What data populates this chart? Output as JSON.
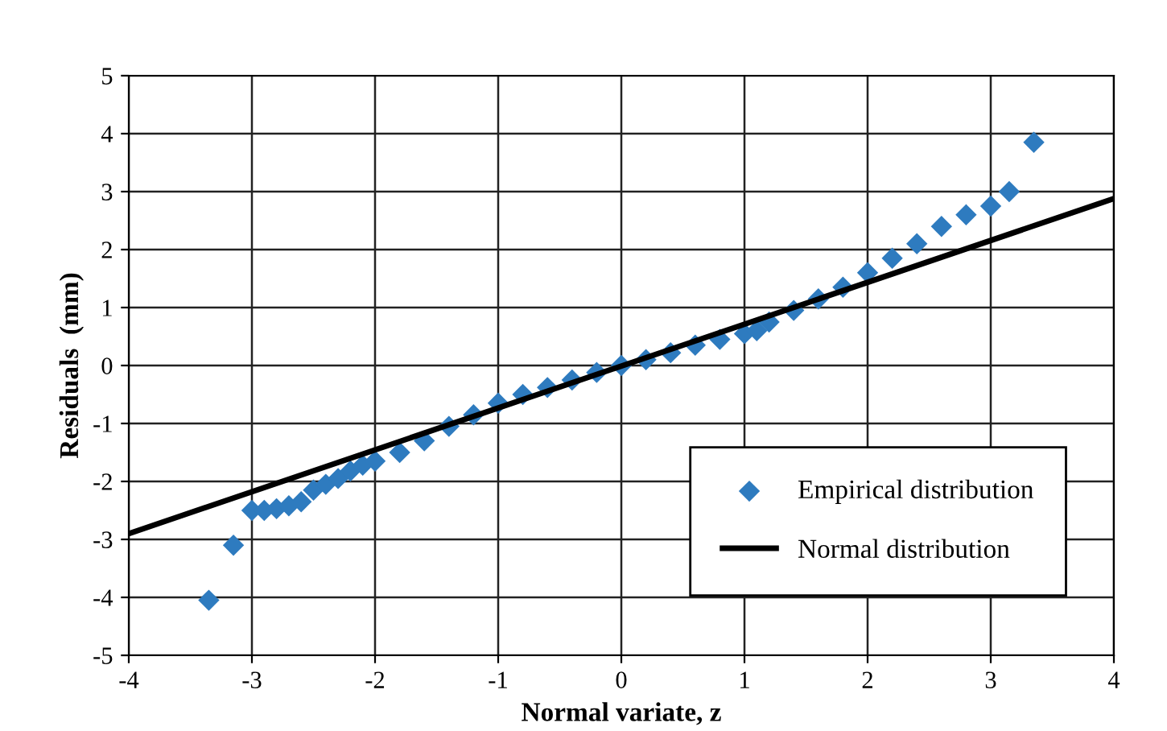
{
  "chart_data": {
    "type": "scatter",
    "xlabel": "Normal variate, z",
    "ylabel": "Residuals  (mm)",
    "xlim": [
      -4,
      4
    ],
    "ylim": [
      -5,
      5
    ],
    "xticks": [
      -4,
      -3,
      -2,
      -1,
      0,
      1,
      2,
      3,
      4
    ],
    "yticks": [
      -5,
      -4,
      -3,
      -2,
      -1,
      0,
      1,
      2,
      3,
      4,
      5
    ],
    "grid": true,
    "legend": "bottom right",
    "series": [
      {
        "name": "Empirical distribution",
        "marker": "diamond",
        "color": "#2e7bbf",
        "x": [
          -3.35,
          -3.15,
          -3.0,
          -2.9,
          -2.8,
          -2.7,
          -2.6,
          -2.5,
          -2.4,
          -2.3,
          -2.2,
          -2.1,
          -2.0,
          -1.8,
          -1.6,
          -1.4,
          -1.2,
          -1.0,
          -0.8,
          -0.6,
          -0.4,
          -0.2,
          0,
          0.2,
          0.4,
          0.6,
          0.8,
          1.0,
          1.1,
          1.2,
          1.4,
          1.6,
          1.8,
          2.0,
          2.2,
          2.4,
          2.6,
          2.8,
          3.0,
          3.15,
          3.35
        ],
        "values": [
          -4.05,
          -3.1,
          -2.5,
          -2.5,
          -2.47,
          -2.42,
          -2.35,
          -2.15,
          -2.05,
          -1.95,
          -1.82,
          -1.72,
          -1.65,
          -1.5,
          -1.3,
          -1.05,
          -0.85,
          -0.65,
          -0.5,
          -0.38,
          -0.25,
          -0.12,
          0,
          0.1,
          0.22,
          0.35,
          0.45,
          0.55,
          0.6,
          0.75,
          0.95,
          1.15,
          1.35,
          1.6,
          1.85,
          2.1,
          2.4,
          2.6,
          2.75,
          3.0,
          3.85
        ]
      },
      {
        "name": "Normal distribution",
        "type": "line",
        "marker": "none",
        "line_style": "solid",
        "color": "#000000",
        "x": [
          -4,
          4
        ],
        "values": [
          -2.9,
          2.88
        ]
      }
    ]
  }
}
